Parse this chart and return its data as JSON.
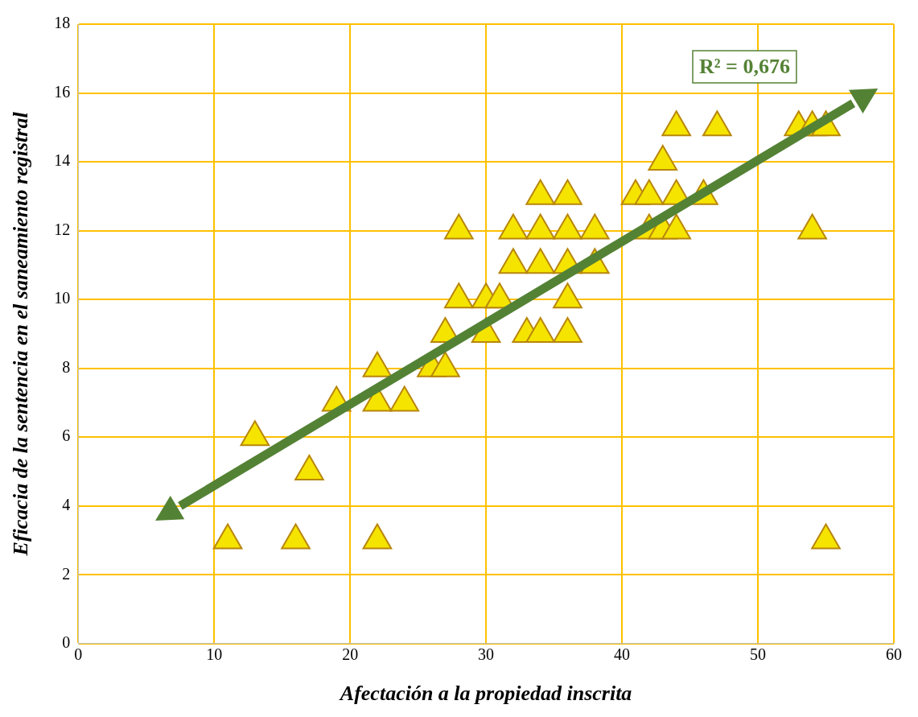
{
  "chart_data": {
    "type": "scatter",
    "xlabel": "Afectación a la propiedad inscrita",
    "ylabel": "Eficacia de la sentencia en el saneamiento registral",
    "annotations": [
      "R² = 0,676"
    ],
    "xlim": [
      0,
      60
    ],
    "xticks": [
      0,
      10,
      20,
      30,
      40,
      50,
      60
    ],
    "ylim": [
      0,
      18
    ],
    "yticks": [
      0,
      2,
      4,
      6,
      8,
      10,
      12,
      14,
      16,
      18
    ],
    "grid": true,
    "marker": "triangle",
    "legend": false,
    "series": [
      {
        "color": "#f5e400",
        "x": [
          11,
          16,
          22,
          55,
          13,
          17,
          19,
          22,
          22,
          24,
          26,
          27,
          27,
          30,
          33,
          34,
          36,
          28,
          30,
          31,
          36,
          32,
          34,
          36,
          38,
          28,
          32,
          34,
          36,
          38,
          34,
          36,
          41,
          42,
          44,
          46,
          44,
          47,
          53,
          54,
          55,
          43,
          42,
          43,
          44,
          54
        ],
        "values": [
          3,
          3,
          3,
          3,
          6,
          5,
          7,
          8,
          7,
          7,
          8,
          8,
          9,
          9,
          9,
          9,
          9,
          10,
          10,
          10,
          10,
          11,
          11,
          11,
          11,
          12,
          12,
          12,
          12,
          12,
          13,
          13,
          13,
          13,
          13,
          13,
          15,
          15,
          15,
          15,
          15,
          14,
          12,
          12,
          12,
          12
        ]
      },
      {
        "type": "line",
        "marker": "none",
        "color": "#548235",
        "x": [
          7.5,
          57
        ],
        "values": [
          4.0,
          15.7
        ]
      }
    ]
  }
}
